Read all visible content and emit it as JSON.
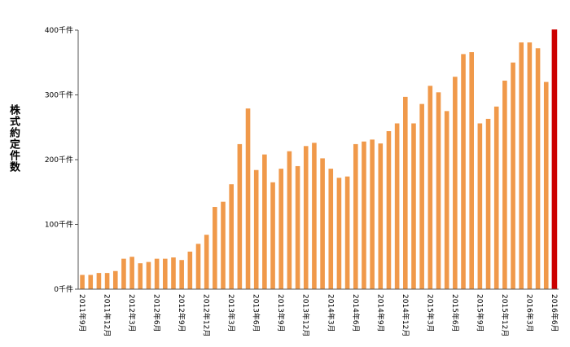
{
  "chart_data": {
    "type": "bar",
    "title": "",
    "xlabel": "",
    "ylabel": "株式約定件数",
    "ylim": [
      0,
      400
    ],
    "yticks": [
      {
        "value": 0,
        "label": "0千件"
      },
      {
        "value": 100,
        "label": "100千件"
      },
      {
        "value": 200,
        "label": "200千件"
      },
      {
        "value": 300,
        "label": "300千件"
      },
      {
        "value": 400,
        "label": "400千件"
      }
    ],
    "bar_color": "#f0994a",
    "highlight_color": "#cc0000",
    "highlight_index": 57,
    "grid": false,
    "categories": [
      "2011年9月",
      "2011年10月",
      "2011年11月",
      "2011年12月",
      "2012年1月",
      "2012年2月",
      "2012年3月",
      "2012年4月",
      "2012年5月",
      "2012年6月",
      "2012年7月",
      "2012年8月",
      "2012年9月",
      "2012年10月",
      "2012年11月",
      "2012年12月",
      "2013年1月",
      "2013年2月",
      "2013年3月",
      "2013年4月",
      "2013年5月",
      "2013年6月",
      "2013年7月",
      "2013年8月",
      "2013年9月",
      "2013年10月",
      "2013年11月",
      "2013年12月",
      "2014年1月",
      "2014年2月",
      "2014年3月",
      "2014年4月",
      "2014年5月",
      "2014年6月",
      "2014年7月",
      "2014年8月",
      "2014年9月",
      "2014年10月",
      "2014年11月",
      "2014年12月",
      "2015年1月",
      "2015年2月",
      "2015年3月",
      "2015年4月",
      "2015年5月",
      "2015年6月",
      "2015年7月",
      "2015年8月",
      "2015年9月",
      "2015年10月",
      "2015年11月",
      "2015年12月",
      "2016年1月",
      "2016年2月",
      "2016年3月",
      "2016年4月",
      "2016年5月",
      "2016年6月"
    ],
    "xtick_labels": [
      "2011年9月",
      "2011年12月",
      "2012年3月",
      "2012年6月",
      "2012年9月",
      "2012年12月",
      "2013年3月",
      "2013年6月",
      "2013年9月",
      "2013年12月",
      "2014年3月",
      "2014年6月",
      "2014年9月",
      "2014年12月",
      "2015年3月",
      "2015年6月",
      "2015年9月",
      "2015年12月",
      "2016年3月",
      "2016年6月"
    ],
    "xtick_every": 3,
    "values": [
      22,
      22,
      25,
      25,
      28,
      47,
      50,
      40,
      42,
      47,
      47,
      49,
      45,
      58,
      70,
      84,
      127,
      135,
      162,
      224,
      279,
      184,
      208,
      165,
      186,
      213,
      190,
      221,
      226,
      202,
      186,
      172,
      174,
      224,
      228,
      231,
      225,
      244,
      256,
      297,
      256,
      286,
      314,
      304,
      275,
      328,
      363,
      366,
      256,
      263,
      282,
      322,
      350,
      381,
      381,
      372,
      320,
      401
    ]
  }
}
